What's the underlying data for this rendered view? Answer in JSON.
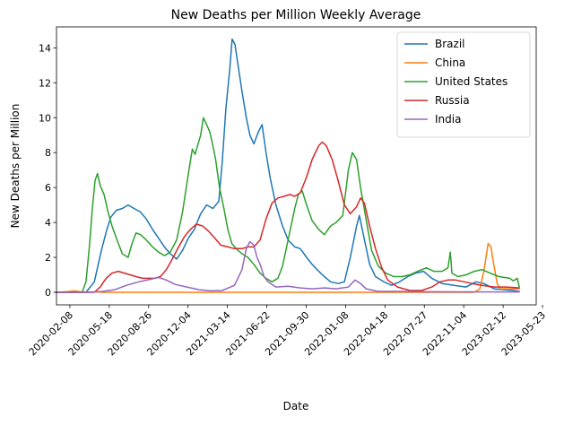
{
  "chart_data": {
    "type": "line",
    "title": "New Deaths per Million Weekly Average",
    "xlabel": "Date",
    "ylabel": "New Deaths per Million",
    "x_axis_type": "date",
    "xlim": [
      "2020-01-05",
      "2023-05-07"
    ],
    "ylim": [
      -0.72,
      15.2
    ],
    "x_ticks": [
      "2020-02-08",
      "2020-05-18",
      "2020-08-26",
      "2020-12-04",
      "2021-03-14",
      "2021-06-22",
      "2021-09-30",
      "2022-01-08",
      "2022-04-18",
      "2022-07-27",
      "2022-11-04",
      "2023-02-12",
      "2023-05-23"
    ],
    "y_ticks": [
      0,
      2,
      4,
      6,
      8,
      10,
      12,
      14
    ],
    "grid": false,
    "legend_position": "top-right",
    "series": [
      {
        "name": "Brazil",
        "color": "#1f77b4",
        "points": [
          [
            "2020-01-05",
            0
          ],
          [
            "2020-03-20",
            0
          ],
          [
            "2020-04-10",
            0.6
          ],
          [
            "2020-04-28",
            2.4
          ],
          [
            "2020-05-12",
            3.6
          ],
          [
            "2020-05-22",
            4.3
          ],
          [
            "2020-06-05",
            4.7
          ],
          [
            "2020-06-20",
            4.8
          ],
          [
            "2020-07-05",
            5.0
          ],
          [
            "2020-07-20",
            4.8
          ],
          [
            "2020-08-05",
            4.6
          ],
          [
            "2020-08-20",
            4.2
          ],
          [
            "2020-09-05",
            3.6
          ],
          [
            "2020-09-20",
            3.1
          ],
          [
            "2020-10-05",
            2.6
          ],
          [
            "2020-10-20",
            2.2
          ],
          [
            "2020-11-05",
            1.9
          ],
          [
            "2020-11-20",
            2.4
          ],
          [
            "2020-12-05",
            3.1
          ],
          [
            "2020-12-20",
            3.6
          ],
          [
            "2021-01-05",
            4.5
          ],
          [
            "2021-01-20",
            5.0
          ],
          [
            "2021-02-05",
            4.8
          ],
          [
            "2021-02-20",
            5.2
          ],
          [
            "2021-03-01",
            7.5
          ],
          [
            "2021-03-10",
            10.5
          ],
          [
            "2021-03-20",
            12.8
          ],
          [
            "2021-03-26",
            14.5
          ],
          [
            "2021-04-02",
            14.2
          ],
          [
            "2021-04-10",
            13.0
          ],
          [
            "2021-04-20",
            11.5
          ],
          [
            "2021-05-01",
            10.0
          ],
          [
            "2021-05-10",
            9.0
          ],
          [
            "2021-05-20",
            8.5
          ],
          [
            "2021-06-01",
            9.2
          ],
          [
            "2021-06-10",
            9.6
          ],
          [
            "2021-06-20",
            8.0
          ],
          [
            "2021-07-01",
            6.5
          ],
          [
            "2021-07-15",
            5.0
          ],
          [
            "2021-08-01",
            3.8
          ],
          [
            "2021-08-15",
            3.0
          ],
          [
            "2021-09-01",
            2.6
          ],
          [
            "2021-09-15",
            2.5
          ],
          [
            "2021-10-01",
            2.0
          ],
          [
            "2021-10-15",
            1.6
          ],
          [
            "2021-11-01",
            1.2
          ],
          [
            "2021-11-15",
            0.9
          ],
          [
            "2021-12-01",
            0.6
          ],
          [
            "2021-12-20",
            0.5
          ],
          [
            "2022-01-05",
            0.6
          ],
          [
            "2022-01-20",
            2.0
          ],
          [
            "2022-02-05",
            3.8
          ],
          [
            "2022-02-12",
            4.4
          ],
          [
            "2022-02-25",
            3.0
          ],
          [
            "2022-03-10",
            1.6
          ],
          [
            "2022-03-25",
            0.9
          ],
          [
            "2022-04-15",
            0.6
          ],
          [
            "2022-05-05",
            0.4
          ],
          [
            "2022-05-25",
            0.6
          ],
          [
            "2022-06-15",
            0.9
          ],
          [
            "2022-07-05",
            1.1
          ],
          [
            "2022-07-25",
            1.2
          ],
          [
            "2022-08-15",
            0.8
          ],
          [
            "2022-09-10",
            0.5
          ],
          [
            "2022-10-10",
            0.4
          ],
          [
            "2022-11-10",
            0.3
          ],
          [
            "2022-12-05",
            0.6
          ],
          [
            "2022-12-25",
            0.5
          ],
          [
            "2023-01-20",
            0.2
          ],
          [
            "2023-02-15",
            0.15
          ],
          [
            "2023-03-10",
            0.1
          ],
          [
            "2023-03-25",
            0.05
          ]
        ]
      },
      {
        "name": "China",
        "color": "#ff7f0e",
        "points": [
          [
            "2020-01-05",
            0
          ],
          [
            "2020-02-01",
            0.04
          ],
          [
            "2020-02-20",
            0.08
          ],
          [
            "2020-03-10",
            0.02
          ],
          [
            "2020-04-20",
            0.02
          ],
          [
            "2020-04-30",
            0
          ],
          [
            "2022-12-01",
            0
          ],
          [
            "2022-12-15",
            0.2
          ],
          [
            "2022-12-25",
            1.2
          ],
          [
            "2023-01-05",
            2.8
          ],
          [
            "2023-01-12",
            2.6
          ],
          [
            "2023-01-20",
            1.5
          ],
          [
            "2023-01-28",
            0.5
          ],
          [
            "2023-02-05",
            0.2
          ],
          [
            "2023-03-25",
            0.2
          ]
        ]
      },
      {
        "name": "United States",
        "color": "#2ca02c",
        "points": [
          [
            "2020-01-05",
            0
          ],
          [
            "2020-03-10",
            0
          ],
          [
            "2020-03-20",
            0.6
          ],
          [
            "2020-03-28",
            2.5
          ],
          [
            "2020-04-05",
            4.8
          ],
          [
            "2020-04-12",
            6.4
          ],
          [
            "2020-04-18",
            6.8
          ],
          [
            "2020-04-25",
            6.1
          ],
          [
            "2020-05-05",
            5.6
          ],
          [
            "2020-05-15",
            4.6
          ],
          [
            "2020-05-25",
            3.8
          ],
          [
            "2020-06-05",
            3.1
          ],
          [
            "2020-06-20",
            2.2
          ],
          [
            "2020-07-05",
            2.0
          ],
          [
            "2020-07-15",
            2.8
          ],
          [
            "2020-07-25",
            3.4
          ],
          [
            "2020-08-05",
            3.3
          ],
          [
            "2020-08-20",
            3.0
          ],
          [
            "2020-09-05",
            2.6
          ],
          [
            "2020-09-20",
            2.3
          ],
          [
            "2020-10-05",
            2.1
          ],
          [
            "2020-10-20",
            2.3
          ],
          [
            "2020-11-05",
            3.0
          ],
          [
            "2020-11-20",
            4.6
          ],
          [
            "2020-12-05",
            6.8
          ],
          [
            "2020-12-15",
            8.2
          ],
          [
            "2020-12-22",
            7.9
          ],
          [
            "2021-01-05",
            9.0
          ],
          [
            "2021-01-12",
            10.0
          ],
          [
            "2021-01-20",
            9.6
          ],
          [
            "2021-01-28",
            9.2
          ],
          [
            "2021-02-05",
            8.4
          ],
          [
            "2021-02-12",
            7.6
          ],
          [
            "2021-02-22",
            6.0
          ],
          [
            "2021-03-05",
            4.8
          ],
          [
            "2021-03-15",
            3.6
          ],
          [
            "2021-03-25",
            2.8
          ],
          [
            "2021-04-05",
            2.5
          ],
          [
            "2021-04-20",
            2.2
          ],
          [
            "2021-05-05",
            2.0
          ],
          [
            "2021-05-20",
            1.6
          ],
          [
            "2021-06-05",
            1.1
          ],
          [
            "2021-06-20",
            0.8
          ],
          [
            "2021-07-05",
            0.6
          ],
          [
            "2021-07-20",
            0.8
          ],
          [
            "2021-08-01",
            1.5
          ],
          [
            "2021-08-15",
            3.0
          ],
          [
            "2021-09-01",
            4.8
          ],
          [
            "2021-09-10",
            5.6
          ],
          [
            "2021-09-20",
            5.8
          ],
          [
            "2021-10-01",
            5.0
          ],
          [
            "2021-10-15",
            4.1
          ],
          [
            "2021-11-01",
            3.6
          ],
          [
            "2021-11-15",
            3.3
          ],
          [
            "2021-12-01",
            3.8
          ],
          [
            "2021-12-15",
            4.0
          ],
          [
            "2022-01-01",
            4.4
          ],
          [
            "2022-01-15",
            7.0
          ],
          [
            "2022-01-25",
            8.0
          ],
          [
            "2022-02-05",
            7.6
          ],
          [
            "2022-02-15",
            6.0
          ],
          [
            "2022-03-01",
            4.2
          ],
          [
            "2022-03-15",
            2.4
          ],
          [
            "2022-04-01",
            1.5
          ],
          [
            "2022-04-20",
            1.1
          ],
          [
            "2022-05-10",
            0.9
          ],
          [
            "2022-06-01",
            0.9
          ],
          [
            "2022-06-20",
            1.0
          ],
          [
            "2022-07-10",
            1.2
          ],
          [
            "2022-08-01",
            1.4
          ],
          [
            "2022-08-20",
            1.2
          ],
          [
            "2022-09-10",
            1.2
          ],
          [
            "2022-09-25",
            1.4
          ],
          [
            "2022-10-01",
            2.3
          ],
          [
            "2022-10-05",
            1.1
          ],
          [
            "2022-10-20",
            0.9
          ],
          [
            "2022-11-10",
            1.0
          ],
          [
            "2022-12-01",
            1.2
          ],
          [
            "2022-12-20",
            1.3
          ],
          [
            "2023-01-10",
            1.1
          ],
          [
            "2023-02-01",
            0.9
          ],
          [
            "2023-03-01",
            0.8
          ],
          [
            "2023-03-10",
            0.65
          ],
          [
            "2023-03-20",
            0.8
          ],
          [
            "2023-03-25",
            0.3
          ]
        ]
      },
      {
        "name": "Russia",
        "color": "#d62728",
        "points": [
          [
            "2020-01-05",
            0
          ],
          [
            "2020-04-10",
            0
          ],
          [
            "2020-04-25",
            0.3
          ],
          [
            "2020-05-10",
            0.8
          ],
          [
            "2020-05-25",
            1.1
          ],
          [
            "2020-06-10",
            1.2
          ],
          [
            "2020-06-25",
            1.1
          ],
          [
            "2020-07-10",
            1.0
          ],
          [
            "2020-07-25",
            0.9
          ],
          [
            "2020-08-10",
            0.8
          ],
          [
            "2020-08-25",
            0.8
          ],
          [
            "2020-09-10",
            0.8
          ],
          [
            "2020-09-25",
            0.9
          ],
          [
            "2020-10-10",
            1.3
          ],
          [
            "2020-10-25",
            1.9
          ],
          [
            "2020-11-10",
            2.6
          ],
          [
            "2020-11-25",
            3.2
          ],
          [
            "2020-12-10",
            3.6
          ],
          [
            "2020-12-25",
            3.9
          ],
          [
            "2021-01-10",
            3.8
          ],
          [
            "2021-01-25",
            3.5
          ],
          [
            "2021-02-10",
            3.1
          ],
          [
            "2021-02-25",
            2.7
          ],
          [
            "2021-03-15",
            2.6
          ],
          [
            "2021-04-01",
            2.5
          ],
          [
            "2021-04-20",
            2.5
          ],
          [
            "2021-05-05",
            2.6
          ],
          [
            "2021-05-20",
            2.6
          ],
          [
            "2021-06-05",
            3.0
          ],
          [
            "2021-06-20",
            4.2
          ],
          [
            "2021-07-05",
            5.1
          ],
          [
            "2021-07-20",
            5.4
          ],
          [
            "2021-08-05",
            5.5
          ],
          [
            "2021-08-20",
            5.6
          ],
          [
            "2021-09-01",
            5.5
          ],
          [
            "2021-09-15",
            5.7
          ],
          [
            "2021-10-01",
            6.6
          ],
          [
            "2021-10-15",
            7.6
          ],
          [
            "2021-11-01",
            8.4
          ],
          [
            "2021-11-10",
            8.6
          ],
          [
            "2021-11-20",
            8.4
          ],
          [
            "2021-12-05",
            7.6
          ],
          [
            "2021-12-20",
            6.4
          ],
          [
            "2022-01-05",
            5.0
          ],
          [
            "2022-01-20",
            4.5
          ],
          [
            "2022-02-05",
            4.9
          ],
          [
            "2022-02-15",
            5.4
          ],
          [
            "2022-02-25",
            5.1
          ],
          [
            "2022-03-10",
            3.8
          ],
          [
            "2022-03-25",
            2.5
          ],
          [
            "2022-04-10",
            1.4
          ],
          [
            "2022-04-25",
            0.7
          ],
          [
            "2022-05-20",
            0.3
          ],
          [
            "2022-06-20",
            0.1
          ],
          [
            "2022-07-20",
            0.1
          ],
          [
            "2022-08-15",
            0.3
          ],
          [
            "2022-09-05",
            0.6
          ],
          [
            "2022-09-25",
            0.7
          ],
          [
            "2022-10-15",
            0.7
          ],
          [
            "2022-11-05",
            0.6
          ],
          [
            "2022-11-25",
            0.5
          ],
          [
            "2022-12-20",
            0.4
          ],
          [
            "2023-01-20",
            0.3
          ],
          [
            "2023-02-20",
            0.3
          ],
          [
            "2023-03-25",
            0.25
          ]
        ]
      },
      {
        "name": "India",
        "color": "#9467bd",
        "points": [
          [
            "2020-01-05",
            0
          ],
          [
            "2020-04-01",
            0
          ],
          [
            "2020-05-01",
            0.05
          ],
          [
            "2020-06-01",
            0.15
          ],
          [
            "2020-07-01",
            0.4
          ],
          [
            "2020-08-01",
            0.6
          ],
          [
            "2020-09-01",
            0.75
          ],
          [
            "2020-09-20",
            0.85
          ],
          [
            "2020-10-10",
            0.7
          ],
          [
            "2020-11-01",
            0.45
          ],
          [
            "2020-12-01",
            0.3
          ],
          [
            "2021-01-01",
            0.15
          ],
          [
            "2021-02-01",
            0.08
          ],
          [
            "2021-03-01",
            0.1
          ],
          [
            "2021-04-01",
            0.4
          ],
          [
            "2021-04-20",
            1.3
          ],
          [
            "2021-05-01",
            2.5
          ],
          [
            "2021-05-10",
            2.9
          ],
          [
            "2021-05-20",
            2.7
          ],
          [
            "2021-05-28",
            2.0
          ],
          [
            "2021-06-05",
            1.6
          ],
          [
            "2021-06-15",
            0.9
          ],
          [
            "2021-06-25",
            0.6
          ],
          [
            "2021-07-15",
            0.3
          ],
          [
            "2021-08-15",
            0.35
          ],
          [
            "2021-09-15",
            0.25
          ],
          [
            "2021-10-15",
            0.2
          ],
          [
            "2021-11-15",
            0.25
          ],
          [
            "2021-12-15",
            0.2
          ],
          [
            "2022-01-15",
            0.3
          ],
          [
            "2022-02-01",
            0.7
          ],
          [
            "2022-02-15",
            0.5
          ],
          [
            "2022-03-01",
            0.2
          ],
          [
            "2022-04-01",
            0.05
          ],
          [
            "2022-06-01",
            0.05
          ],
          [
            "2022-08-01",
            0.03
          ],
          [
            "2023-03-25",
            0.02
          ]
        ]
      }
    ]
  }
}
